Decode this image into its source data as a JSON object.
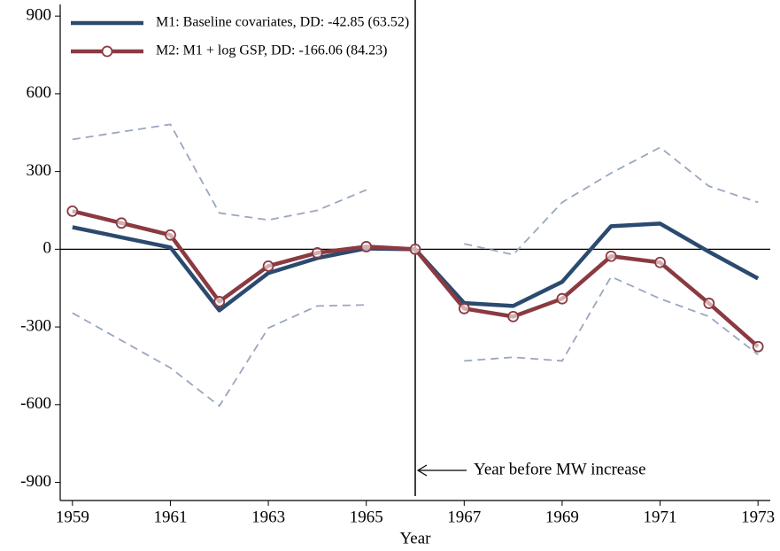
{
  "chart_data": {
    "type": "line",
    "x": [
      1959,
      1960,
      1961,
      1962,
      1963,
      1964,
      1965,
      1966,
      1967,
      1968,
      1969,
      1970,
      1971,
      1972,
      1973
    ],
    "series": [
      {
        "name": "M1: Baseline covariates, DD: -42.85 (63.52)",
        "color": "#2b4a6f",
        "marker": "none",
        "values": [
          85,
          46,
          7,
          -236,
          -92,
          -34,
          3,
          0,
          -208,
          -219,
          -126,
          89,
          99,
          -10,
          -113
        ]
      },
      {
        "name": "M2: M1 + log GSP, DD: -166.06 (84.23)",
        "color": "#8a3a40",
        "marker": "circle",
        "values": [
          147,
          101,
          55,
          -202,
          -65,
          -14,
          10,
          0,
          -229,
          -260,
          -191,
          -27,
          -51,
          -209,
          -376
        ]
      }
    ],
    "bands": [
      {
        "color": "#9aa7bd",
        "values": [
          424,
          453,
          482,
          140,
          113,
          150,
          229,
          null,
          21,
          -21,
          181,
          294,
          393,
          243,
          181
        ]
      },
      {
        "color": "#9aa7bd",
        "values": [
          -246,
          -352,
          -458,
          -605,
          -304,
          -219,
          -215,
          null,
          -431,
          -417,
          -431,
          -106,
          -191,
          -260,
          -407
        ]
      }
    ],
    "xlabel": "Year",
    "xlim": [
      1958.75,
      1973.25
    ],
    "ylim": [
      -970,
      945
    ],
    "xticks": [
      1959,
      1961,
      1963,
      1965,
      1967,
      1969,
      1971,
      1973
    ],
    "yticks": [
      -900,
      -600,
      -300,
      0,
      300,
      600,
      900
    ],
    "hline": 0,
    "vline": 1966,
    "annotation": "Year before MW increase",
    "legend": "top-left",
    "grid": false
  }
}
